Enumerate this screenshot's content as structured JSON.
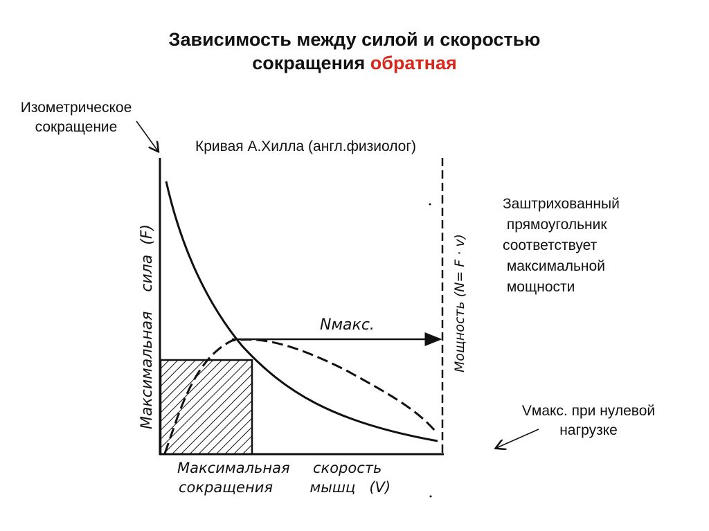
{
  "title": {
    "line1": "Зависимость между силой и  скоростью",
    "line2_prefix": "сокращения ",
    "line2_accent": "обратная"
  },
  "colors": {
    "accent": "#d7281e",
    "ink": "#111111"
  },
  "annotations": {
    "isometric_line1": "Изометрическое",
    "isometric_line2": "сокращение",
    "hill_curve": "Кривая А.Хилла (англ.физиолог)",
    "shaded_lines": [
      "Заштрихованный",
      " прямоугольник",
      "соответствует",
      " максимальной",
      " мощности"
    ],
    "vmax_line1": "Vмакс. при нулевой",
    "vmax_line2": "нагрузке"
  },
  "axes": {
    "y_left_label": "Максимальная    сила  (F)",
    "y_right_label": "Мощность (N= F · v)",
    "x_label_line1": "Максимальная     скорость",
    "x_label_line2": "сокращения        мышц   (V)",
    "n_max_label": "Nмакс."
  }
}
